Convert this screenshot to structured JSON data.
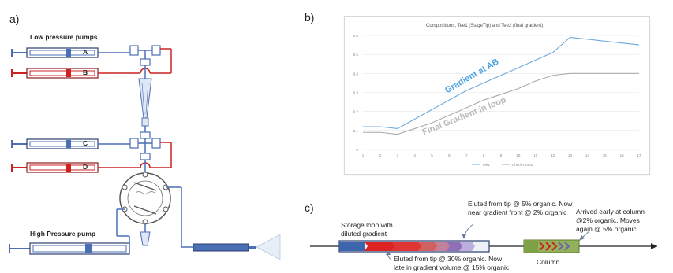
{
  "panels": {
    "a_label": "a)",
    "b_label": "b)",
    "c_label": "c)"
  },
  "panel_a": {
    "low_pressure_label": "Low pressure pumps",
    "high_pressure_label": "High Pressure pump",
    "pump_letters": [
      "A",
      "B",
      "C",
      "D"
    ],
    "colors": {
      "blue": "#4a6fb5",
      "red": "#cc2222",
      "gray": "#888888"
    }
  },
  "panel_b": {
    "chart_data": {
      "type": "line",
      "title": "Compositions,  Tee1 (StageTip) and Tee2 (final gradient)",
      "x": [
        1,
        2,
        3,
        4,
        5,
        6,
        7,
        8,
        9,
        10,
        11,
        12,
        13,
        14,
        15,
        16,
        17
      ],
      "ylim": [
        0,
        0.6
      ],
      "yticks": [
        "0",
        "0,1",
        "0,2",
        "0,3",
        "0,4",
        "0,5",
        "0,6"
      ],
      "series": [
        {
          "name": "Tee1",
          "color": "#6fa8dc",
          "values": [
            0.12,
            0.12,
            0.11,
            0.16,
            0.21,
            0.26,
            0.31,
            0.35,
            0.39,
            0.43,
            0.47,
            0.51,
            0.59,
            0.58,
            0.57,
            0.56,
            0.55
          ]
        },
        {
          "name": "Check Cond2",
          "color": "#aaaaaa",
          "values": [
            0.09,
            0.09,
            0.08,
            0.11,
            0.14,
            0.18,
            0.22,
            0.26,
            0.29,
            0.32,
            0.36,
            0.39,
            0.4,
            0.4,
            0.4,
            0.4,
            0.4
          ]
        }
      ],
      "annotations": {
        "gradient_ab": "Gradient at AB",
        "final_gradient": "Final Gradient in loop"
      },
      "grid": true,
      "legend": "bottom"
    }
  },
  "panel_c": {
    "storage_loop_label": "Storage loop with\ndiluted gradient",
    "eluted_tip_5": "Eluted from tip @ 5% organic. Now\nnear gradient front @ 2% organic",
    "eluted_tip_30": "Eluted from tip @ 30% organic. Now\nlate in gradient volume @ 15% organic",
    "arrived_early": "Arrived early at column\n@2% organic. Moves\nagain @ 5% organic",
    "column_label": "Column"
  }
}
